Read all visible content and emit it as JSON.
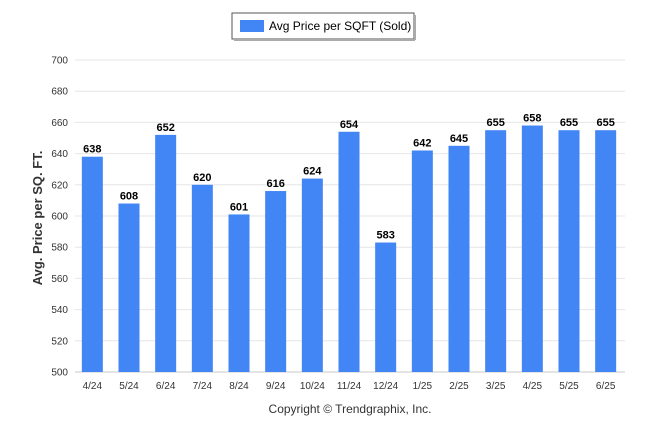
{
  "chart_data": {
    "type": "bar",
    "categories": [
      "4/24",
      "5/24",
      "6/24",
      "7/24",
      "8/24",
      "9/24",
      "10/24",
      "11/24",
      "12/24",
      "1/25",
      "2/25",
      "3/25",
      "4/25",
      "5/25",
      "6/25"
    ],
    "series": [
      {
        "name": "Avg Price per SQFT (Sold)",
        "values": [
          638,
          608,
          652,
          620,
          601,
          616,
          624,
          654,
          583,
          642,
          645,
          655,
          658,
          655,
          655
        ],
        "color": "#4285f4"
      }
    ],
    "ylabel": "Avg. Price per SQ. FT.",
    "ylim": [
      500,
      700
    ],
    "yticks": [
      500,
      520,
      540,
      560,
      580,
      600,
      620,
      640,
      660,
      680,
      700
    ],
    "grid": true,
    "legend_position": "top-center",
    "data_labels": true
  },
  "footer": {
    "copyright": "Copyright © Trendgraphix, Inc."
  }
}
